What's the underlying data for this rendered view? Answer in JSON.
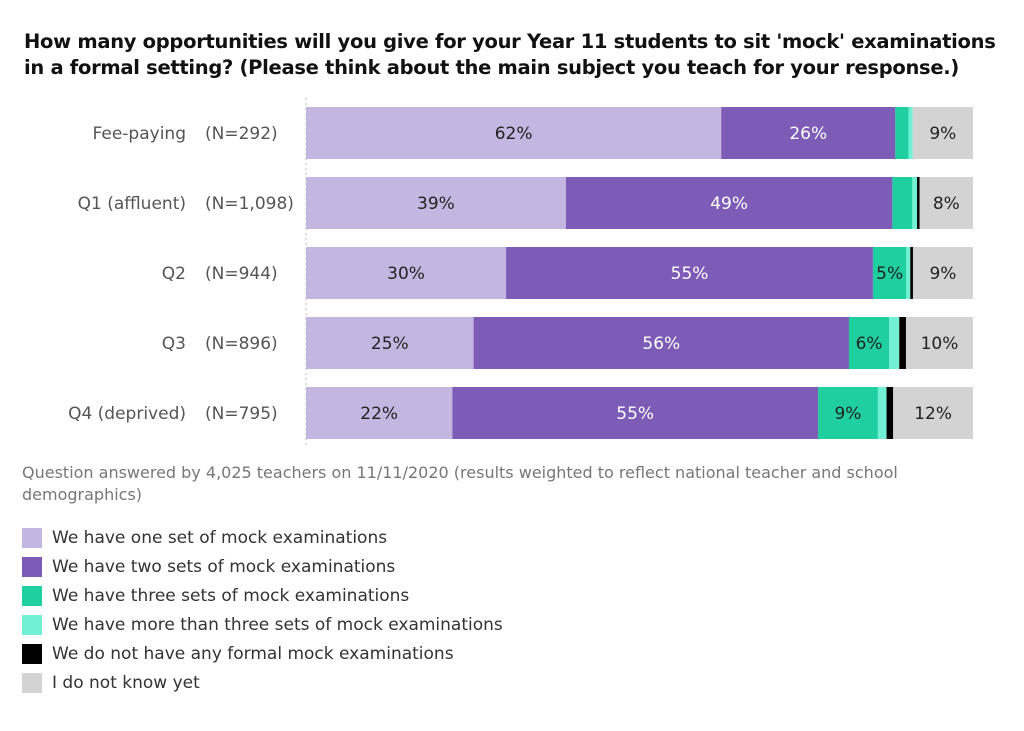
{
  "chart_data": {
    "type": "bar",
    "orientation": "horizontal-stacked",
    "title": "How many opportunities will you give for your Year 11 students to sit 'mock' examinations in a formal setting? (Please think about the main subject you teach for your response.)",
    "note": "Question answered by 4,025 teachers on 11/11/2020 (results weighted to reflect national teacher and school demographics)",
    "categories": [
      "Fee-paying",
      "Q1 (affluent)",
      "Q2",
      "Q3",
      "Q4 (deprived)"
    ],
    "n_labels": [
      "(N=292)",
      "(N=1,098)",
      "(N=944)",
      "(N=896)",
      "(N=795)"
    ],
    "xlim": [
      0,
      100
    ],
    "legend_position": "bottom-left",
    "series": [
      {
        "name": "We have one set of mock examinations",
        "color": "#c3b6e0",
        "label_color": "#222",
        "values": [
          62,
          39,
          30,
          25,
          22
        ],
        "labels": [
          "62%",
          "39%",
          "30%",
          "25%",
          "22%"
        ]
      },
      {
        "name": "We have two sets of mock examinations",
        "color": "#7d5cb8",
        "label_color": "#fff",
        "values": [
          26,
          49,
          55,
          56,
          55
        ],
        "labels": [
          "26%",
          "49%",
          "55%",
          "56%",
          "55%"
        ]
      },
      {
        "name": "We have three sets of mock examinations",
        "color": "#1fcf9f",
        "label_color": "#222",
        "values": [
          2,
          3,
          5,
          6,
          9
        ],
        "labels": [
          null,
          null,
          "5%",
          "6%",
          "9%"
        ]
      },
      {
        "name": "We have more than three sets of mock examinations",
        "color": "#72f0d3",
        "label_color": "#222",
        "values": [
          0.6,
          0.7,
          0.6,
          1.5,
          1.3
        ],
        "labels": [
          null,
          null,
          null,
          null,
          null
        ]
      },
      {
        "name": "We do not have any formal mock examinations",
        "color": "#000000",
        "label_color": "#fff",
        "values": [
          0,
          0.4,
          0.4,
          1,
          1
        ],
        "labels": [
          null,
          null,
          null,
          null,
          null
        ]
      },
      {
        "name": "I do not know yet",
        "color": "#d3d3d3",
        "label_color": "#222",
        "values": [
          9,
          8,
          9,
          10,
          12
        ],
        "labels": [
          "9%",
          "8%",
          "9%",
          "10%",
          "12%"
        ]
      }
    ]
  }
}
